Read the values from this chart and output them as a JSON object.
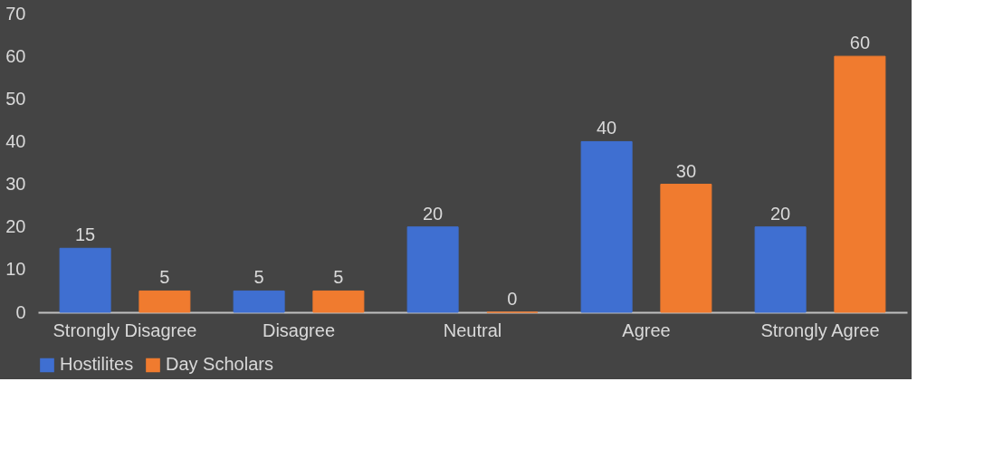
{
  "chart_data": {
    "type": "bar",
    "categories": [
      "Strongly Disagree",
      "Disagree",
      "Neutral",
      "Agree",
      "Strongly Agree"
    ],
    "series": [
      {
        "name": "Hostilites",
        "color": "#3f6fd1",
        "values": [
          15,
          5,
          20,
          40,
          20
        ]
      },
      {
        "name": "Day Scholars",
        "color": "#f07b2f",
        "values": [
          5,
          5,
          0,
          30,
          60
        ]
      }
    ],
    "ylim": [
      0,
      70
    ],
    "yticks": [
      0,
      10,
      20,
      30,
      40,
      50,
      60,
      70
    ],
    "data_labels": true,
    "legend": "bottom",
    "grid": false
  }
}
